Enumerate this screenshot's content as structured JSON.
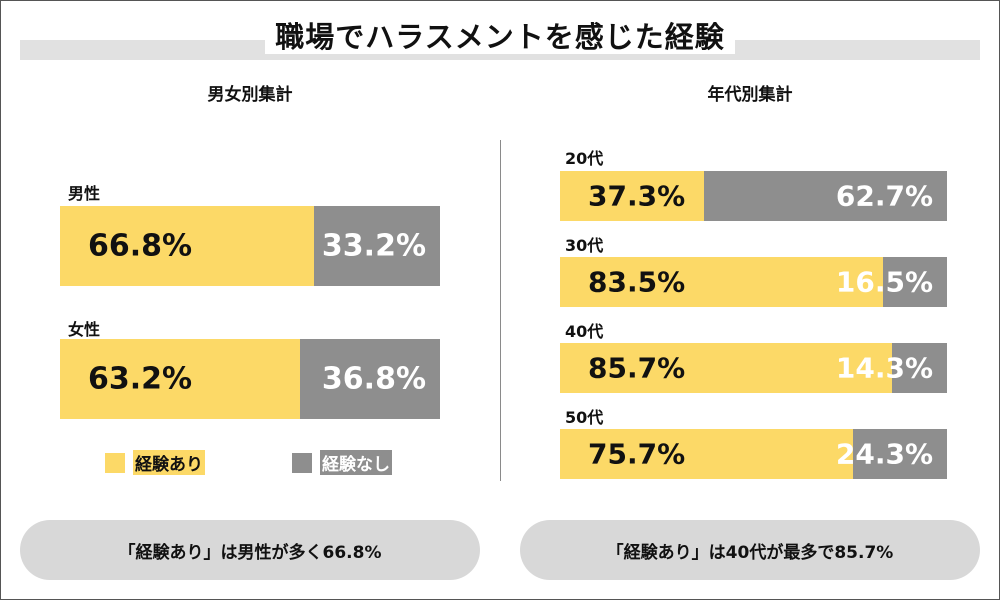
{
  "title": "職場でハラスメントを感じた経験",
  "colors": {
    "yes": "#fcd967",
    "no": "#8e8e8e",
    "band": "#e1e1e1"
  },
  "legend": {
    "yes_label": "経験あり",
    "no_label": "経験なし"
  },
  "chart_data": [
    {
      "type": "bar",
      "orientation": "horizontal",
      "stacked": true,
      "title": "男女別集計",
      "categories": [
        "男性",
        "女性"
      ],
      "series": [
        {
          "name": "経験あり",
          "values": [
            66.8,
            63.2
          ],
          "labels": [
            "66.8%",
            "63.2%"
          ]
        },
        {
          "name": "経験なし",
          "values": [
            33.2,
            36.8
          ],
          "labels": [
            "33.2%",
            "36.8%"
          ]
        }
      ],
      "xlim": [
        0,
        100
      ]
    },
    {
      "type": "bar",
      "orientation": "horizontal",
      "stacked": true,
      "title": "年代別集計",
      "categories": [
        "20代",
        "30代",
        "40代",
        "50代"
      ],
      "series": [
        {
          "name": "経験あり",
          "values": [
            37.3,
            83.5,
            85.7,
            75.7
          ],
          "labels": [
            "37.3%",
            "83.5%",
            "85.7%",
            "75.7%"
          ]
        },
        {
          "name": "経験なし",
          "values": [
            62.7,
            16.5,
            14.3,
            24.3
          ],
          "labels": [
            "62.7%",
            "16.5%",
            "14.3%",
            "24.3%"
          ]
        }
      ],
      "xlim": [
        0,
        100
      ]
    }
  ],
  "summary": {
    "left": "「経験あり」は男性が多く66.8%",
    "right": "「経験あり」は40代が最多で85.7%"
  }
}
